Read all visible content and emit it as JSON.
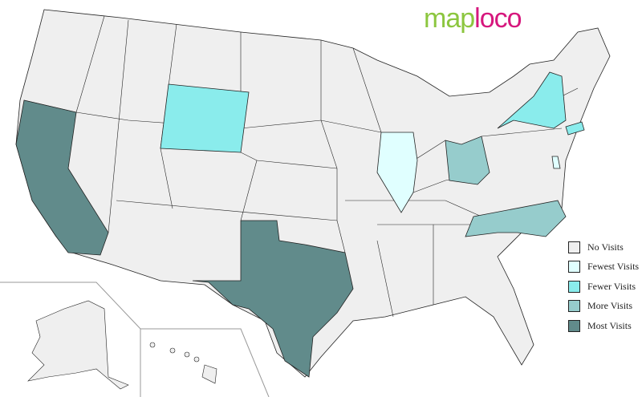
{
  "logo": {
    "part1": "map",
    "part2": "loco"
  },
  "colors": {
    "none": "#efefef",
    "fewest": "#e0ffff",
    "fewer": "#8aecec",
    "more": "#96cccc",
    "most": "#618b8b",
    "border": "#222222"
  },
  "legend": [
    {
      "key": "none",
      "label": "No Visits"
    },
    {
      "key": "fewest",
      "label": "Fewest Visits"
    },
    {
      "key": "fewer",
      "label": "Fewer Visits"
    },
    {
      "key": "more",
      "label": "More Visits"
    },
    {
      "key": "most",
      "label": "Most Visits"
    }
  ],
  "visited_states": [
    {
      "state": "California",
      "level": "most"
    },
    {
      "state": "Texas",
      "level": "most"
    },
    {
      "state": "Ohio",
      "level": "more"
    },
    {
      "state": "North Carolina",
      "level": "more"
    },
    {
      "state": "Wyoming",
      "level": "fewer"
    },
    {
      "state": "New York",
      "level": "fewer"
    },
    {
      "state": "Connecticut",
      "level": "fewer"
    },
    {
      "state": "Illinois",
      "level": "fewest"
    },
    {
      "state": "Delaware",
      "level": "fewest"
    }
  ]
}
